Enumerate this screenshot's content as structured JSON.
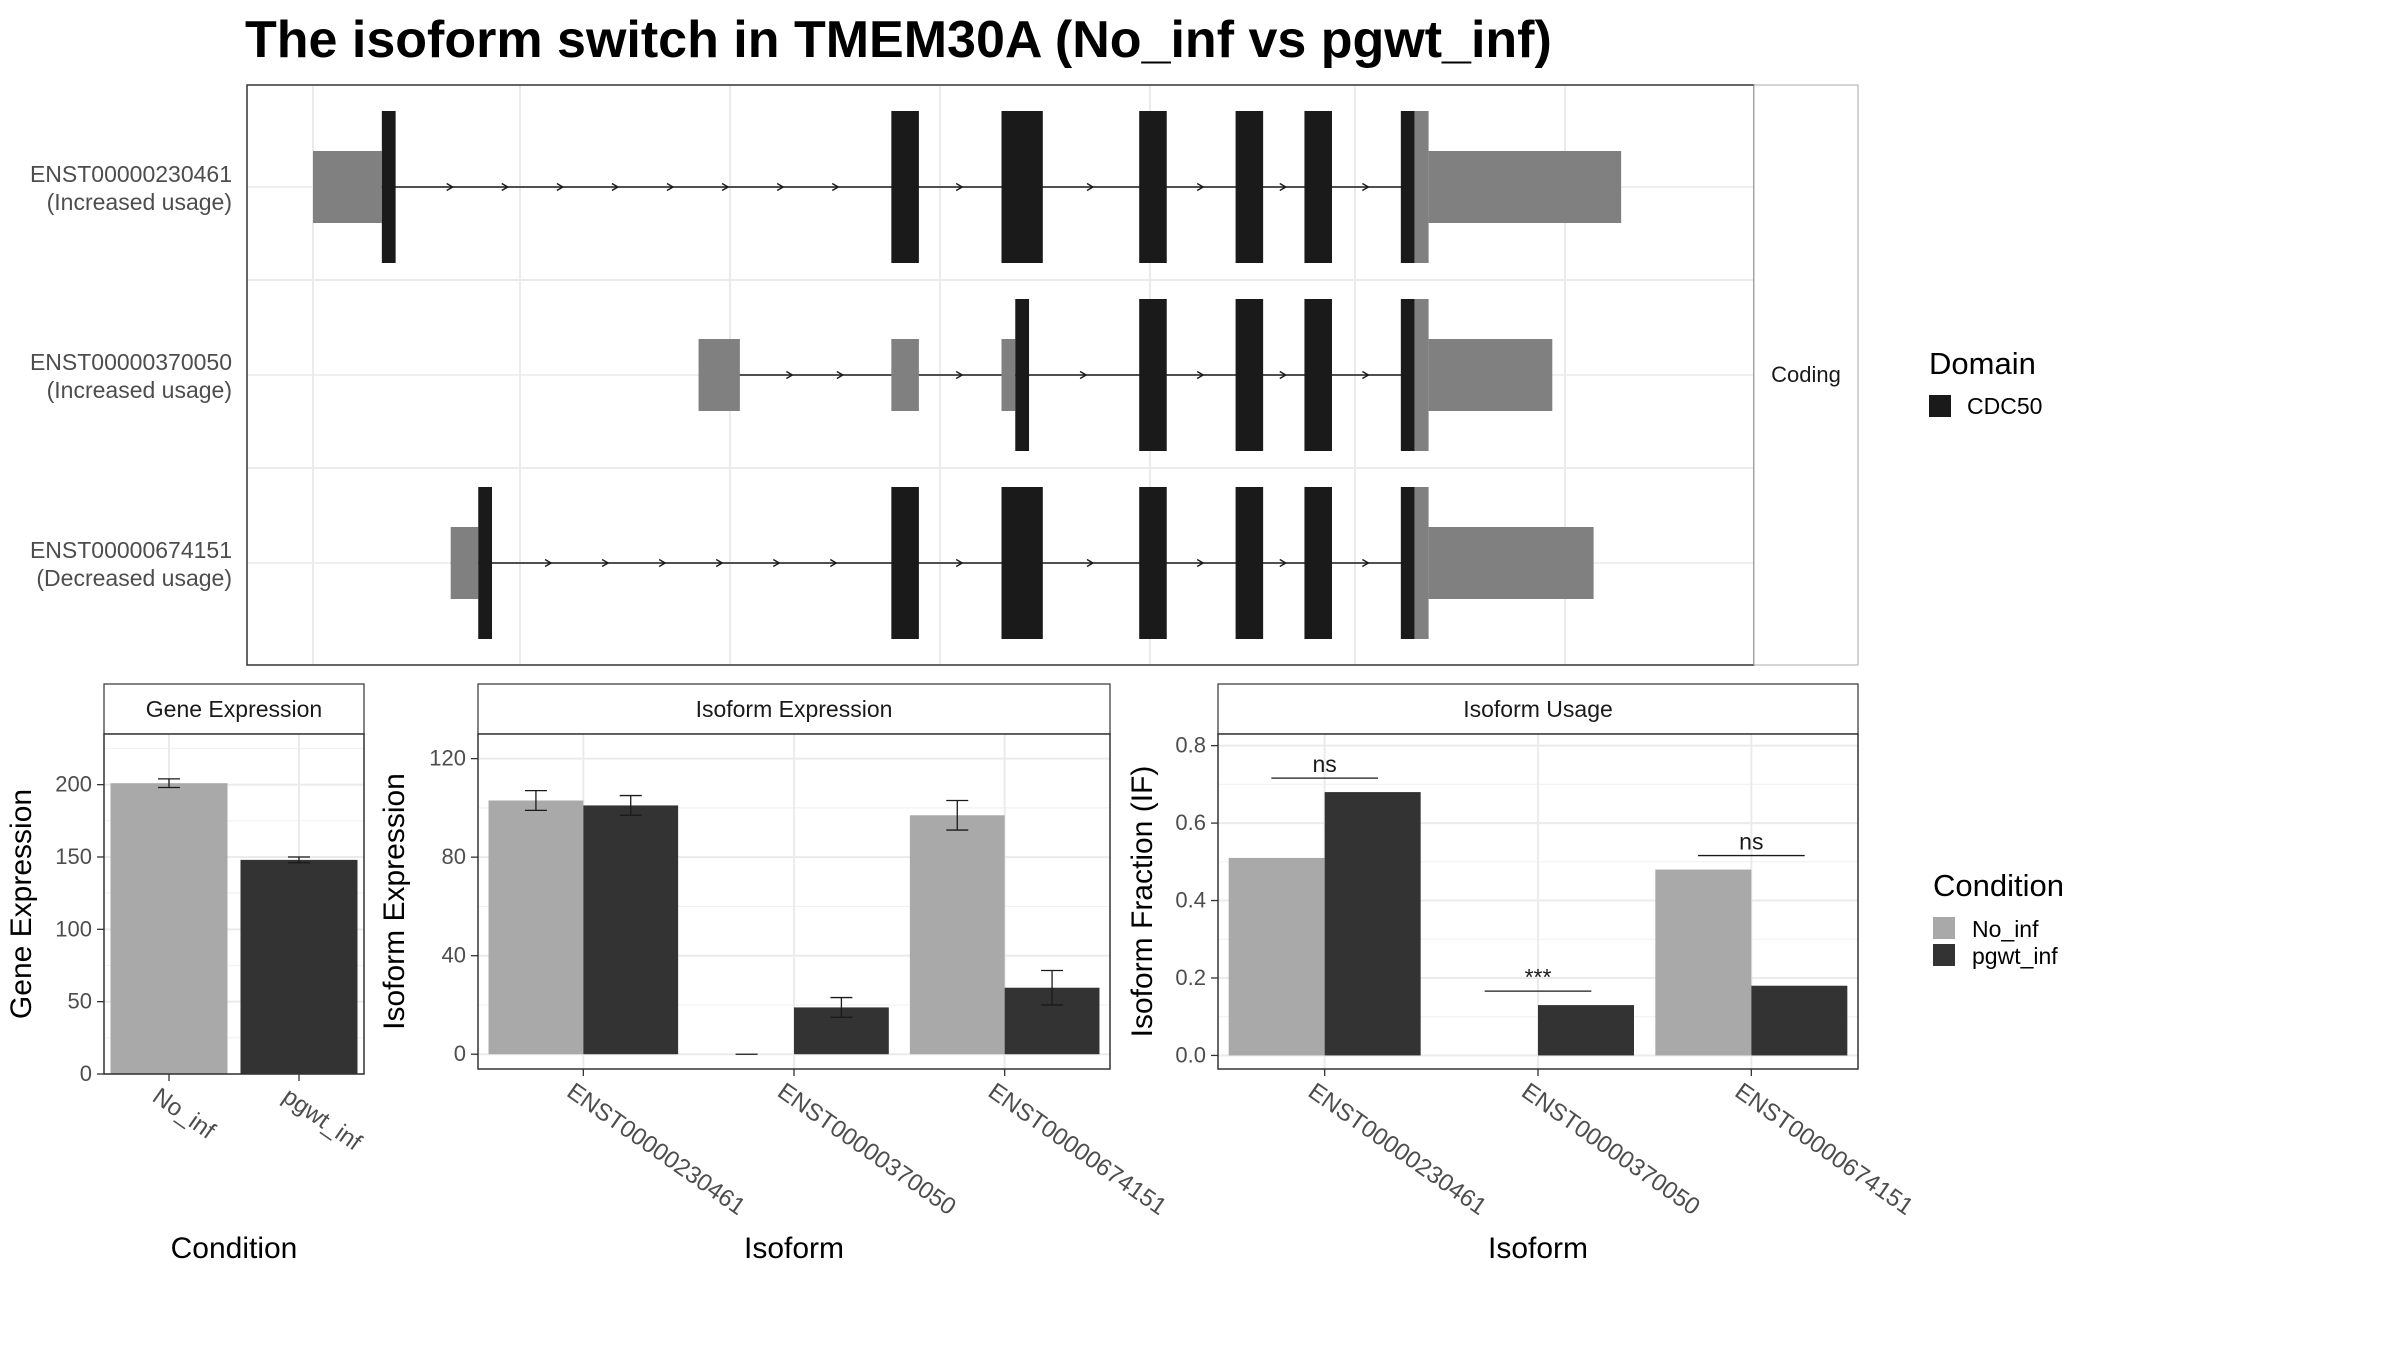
{
  "title": "The isoform switch in TMEM30A (No_inf vs pgwt_inf)",
  "colors": {
    "utr": "#808080",
    "cds": "#1a1a1a",
    "no_inf": "#a9a9a9",
    "pgwt_inf": "#333333",
    "grid": "#ebebeb"
  },
  "chart_data": [
    {
      "type": "gene-structure",
      "strip_label": "Coding",
      "legend_title": "Domain",
      "legend_items": [
        "CDC50"
      ],
      "transcripts": [
        {
          "id": "ENST00000230461",
          "usage": "(Increased usage)",
          "utr_exons": [
            [
              0.0,
              0.05
            ]
          ],
          "exons": [
            [
              0.05,
              0.06
            ],
            [
              0.42,
              0.44
            ],
            [
              0.5,
              0.53
            ],
            [
              0.6,
              0.62
            ],
            [
              0.67,
              0.69
            ],
            [
              0.72,
              0.74
            ],
            [
              0.79,
              0.8
            ]
          ],
          "three_utr": [
            0.8,
            0.95
          ]
        },
        {
          "id": "ENST00000370050",
          "usage": "(Increased usage)",
          "utr_exons": [
            [
              0.28,
              0.31
            ],
            [
              0.42,
              0.44
            ],
            [
              0.5,
              0.51
            ]
          ],
          "exons": [
            [
              0.51,
              0.52
            ],
            [
              0.6,
              0.62
            ],
            [
              0.67,
              0.69
            ],
            [
              0.72,
              0.74
            ],
            [
              0.79,
              0.8
            ]
          ],
          "three_utr": [
            0.8,
            0.9
          ]
        },
        {
          "id": "ENST00000674151",
          "usage": "(Decreased usage)",
          "utr_exons": [
            [
              0.1,
              0.12
            ]
          ],
          "exons": [
            [
              0.12,
              0.13
            ],
            [
              0.42,
              0.44
            ],
            [
              0.5,
              0.53
            ],
            [
              0.6,
              0.62
            ],
            [
              0.67,
              0.69
            ],
            [
              0.72,
              0.74
            ],
            [
              0.79,
              0.8
            ]
          ],
          "three_utr": [
            0.8,
            0.93
          ]
        }
      ]
    },
    {
      "type": "bar",
      "strip_title": "Gene Expression",
      "xlabel": "Condition",
      "ylabel": "Gene Expression",
      "categories": [
        "No_inf",
        "pgwt_inf"
      ],
      "values": [
        201,
        148
      ],
      "errors": [
        3,
        2
      ],
      "ylim": [
        0,
        235
      ],
      "yticks": [
        0,
        50,
        100,
        150,
        200
      ]
    },
    {
      "type": "bar",
      "strip_title": "Isoform Expression",
      "xlabel": "Isoform",
      "ylabel": "Isoform Expression",
      "categories": [
        "ENST00000230461",
        "ENST00000370050",
        "ENST00000674151"
      ],
      "series": [
        {
          "name": "No_inf",
          "values": [
            103,
            0,
            97
          ],
          "errors": [
            4,
            0,
            6
          ]
        },
        {
          "name": "pgwt_inf",
          "values": [
            101,
            19,
            27
          ],
          "errors": [
            4,
            4,
            7
          ]
        }
      ],
      "ylim": [
        -6,
        130
      ],
      "yticks": [
        0,
        40,
        80,
        120
      ]
    },
    {
      "type": "bar",
      "strip_title": "Isoform Usage",
      "xlabel": "Isoform",
      "ylabel": "Isoform Fraction (IF)",
      "categories": [
        "ENST00000230461",
        "ENST00000370050",
        "ENST00000674151"
      ],
      "series": [
        {
          "name": "No_inf",
          "values": [
            0.51,
            0.0,
            0.48
          ]
        },
        {
          "name": "pgwt_inf",
          "values": [
            0.68,
            0.13,
            0.18
          ]
        }
      ],
      "significance": [
        "ns",
        "***",
        "ns"
      ],
      "ylim": [
        -0.035,
        0.83
      ],
      "yticks": [
        0.0,
        0.2,
        0.4,
        0.6,
        0.8
      ],
      "legend_title": "Condition",
      "legend_items": [
        "No_inf",
        "pgwt_inf"
      ]
    }
  ]
}
